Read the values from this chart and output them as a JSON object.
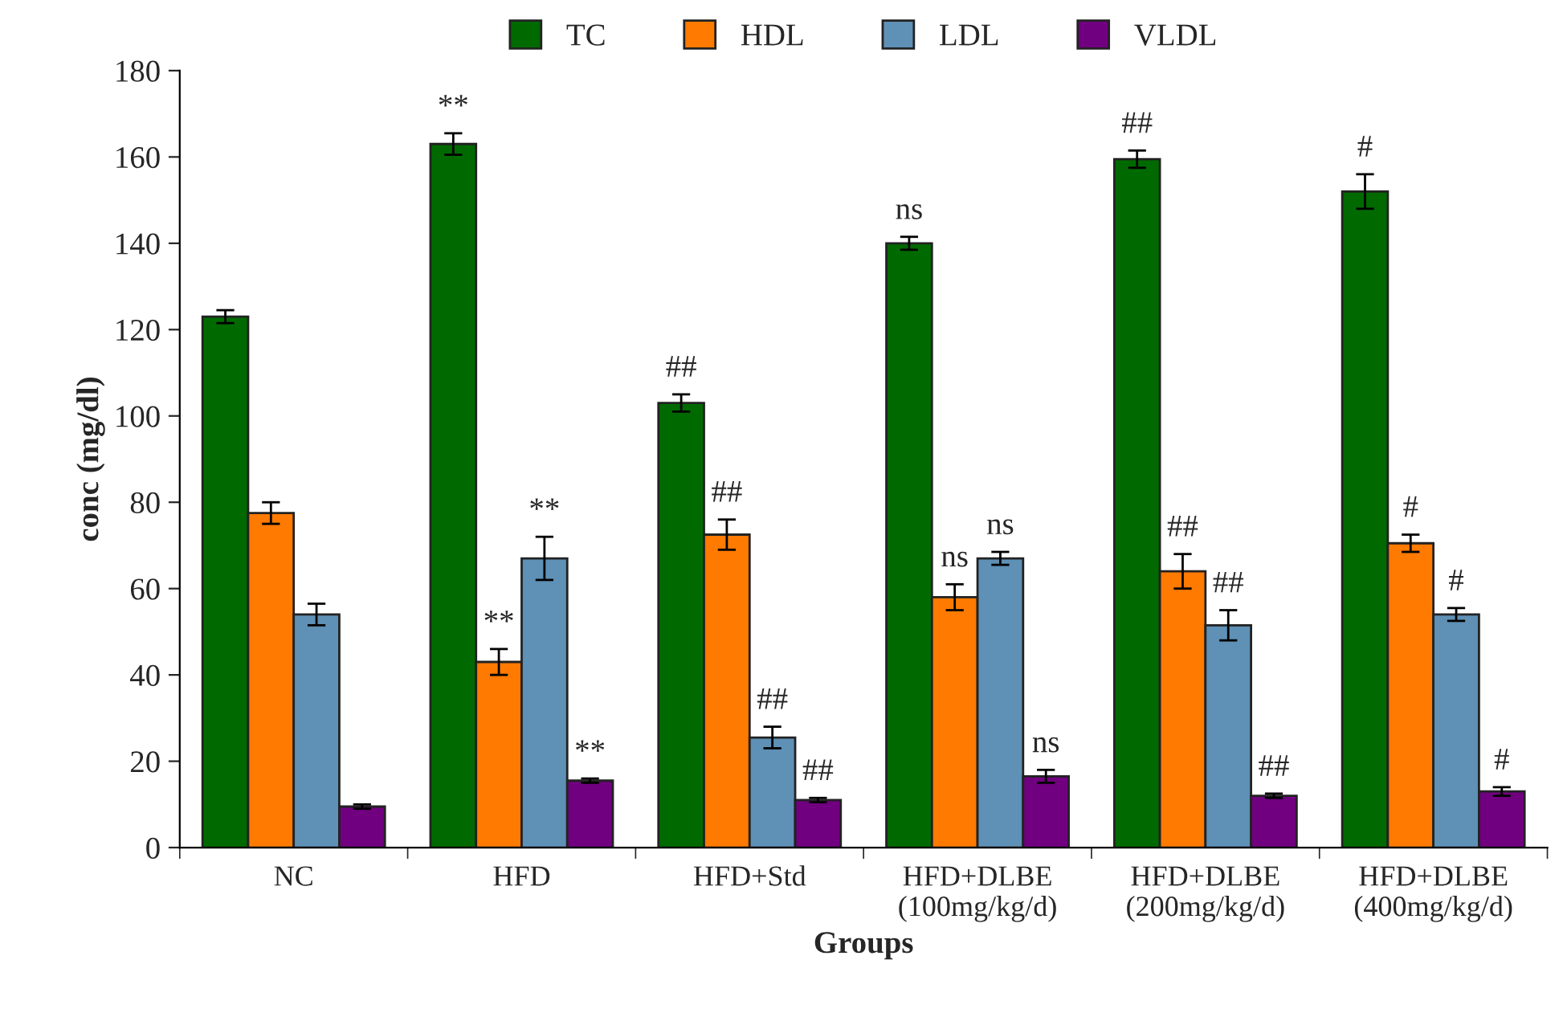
{
  "chart_data": {
    "type": "bar",
    "xlabel": "Groups",
    "ylabel": "conc (mg/dl)",
    "categories": [
      "NC",
      "HFD",
      "HFD+Std",
      "HFD+DLBE\n(100mg/kg/d)",
      "HFD+DLBE\n(200mg/kg/d)",
      "HFD+DLBE\n(400mg/kg/d)"
    ],
    "series": [
      {
        "name": "TC",
        "color": "#006a00",
        "values": [
          123,
          163,
          103,
          140,
          159.5,
          152
        ],
        "errors": [
          1.5,
          2.5,
          2,
          1.5,
          2,
          4
        ],
        "value_labels": [
          null,
          "**",
          "##",
          "ns",
          "##",
          "#"
        ]
      },
      {
        "name": "HDL",
        "color": "#ff7a00",
        "values": [
          77.5,
          43,
          72.5,
          58,
          64,
          70.5
        ],
        "errors": [
          2.5,
          3,
          3.5,
          3,
          4,
          2
        ],
        "value_labels": [
          null,
          "**",
          "##",
          "ns",
          "##",
          "#"
        ]
      },
      {
        "name": "LDL",
        "color": "#5f90b5",
        "values": [
          54,
          67,
          25.5,
          67,
          51.5,
          54
        ],
        "errors": [
          2.5,
          5,
          2.5,
          1.5,
          3.5,
          1.5
        ],
        "value_labels": [
          null,
          "**",
          "##",
          "ns",
          "##",
          "#"
        ]
      },
      {
        "name": "VLDL",
        "color": "#70007f",
        "values": [
          9.5,
          15.5,
          11,
          16.5,
          12,
          13
        ],
        "errors": [
          0.5,
          0.5,
          0.5,
          1.5,
          0.5,
          1
        ],
        "value_labels": [
          null,
          "**",
          "##",
          "ns",
          "##",
          "#"
        ]
      }
    ],
    "ylim": [
      0,
      180
    ],
    "yticks": [
      0,
      20,
      40,
      60,
      80,
      100,
      120,
      140,
      160,
      180
    ],
    "legend": "top"
  }
}
